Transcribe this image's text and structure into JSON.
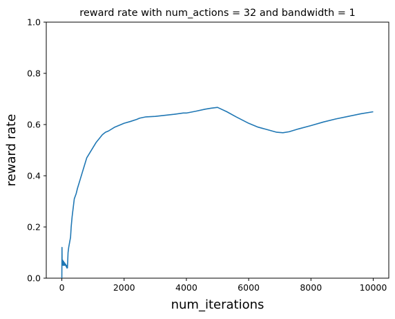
{
  "chart_data": {
    "type": "line",
    "title": "reward rate with num_actions = 32 and bandwidth = 1",
    "xlabel": "num_iterations",
    "ylabel": "reward rate",
    "xlim": [
      -500,
      10500
    ],
    "ylim": [
      0.0,
      1.0
    ],
    "xticks": [
      0,
      2000,
      4000,
      6000,
      8000,
      10000
    ],
    "xtick_labels": [
      "0",
      "2000",
      "4000",
      "6000",
      "8000",
      "10000"
    ],
    "yticks": [
      0.0,
      0.2,
      0.4,
      0.6,
      0.8,
      1.0
    ],
    "ytick_labels": [
      "0.0",
      "0.2",
      "0.4",
      "0.6",
      "0.8",
      "1.0"
    ],
    "grid": false,
    "legend": "none",
    "series": [
      {
        "color": "#1f77b4",
        "x": [
          0,
          5,
          10,
          15,
          20,
          30,
          40,
          50,
          60,
          70,
          80,
          90,
          100,
          120,
          140,
          150,
          160,
          180,
          200,
          220,
          250,
          280,
          300,
          330,
          360,
          400,
          430,
          460,
          500,
          550,
          600,
          650,
          700,
          750,
          800,
          850,
          900,
          1000,
          1100,
          1200,
          1300,
          1400,
          1500,
          1700,
          1900,
          2000,
          2200,
          2400,
          2500,
          2700,
          3000,
          3300,
          3600,
          3900,
          4000,
          4300,
          4600,
          4800,
          5000,
          5300,
          5600,
          6000,
          6300,
          6600,
          6900,
          7100,
          7300,
          7600,
          8000,
          8400,
          8800,
          9200,
          9600,
          10000
        ],
        "y": [
          0.0,
          0.12,
          0.05,
          0.07,
          0.06,
          0.07,
          0.05,
          0.06,
          0.065,
          0.05,
          0.055,
          0.06,
          0.05,
          0.055,
          0.045,
          0.05,
          0.04,
          0.04,
          0.1,
          0.12,
          0.14,
          0.16,
          0.2,
          0.24,
          0.27,
          0.31,
          0.32,
          0.33,
          0.35,
          0.37,
          0.39,
          0.41,
          0.43,
          0.45,
          0.47,
          0.48,
          0.49,
          0.51,
          0.53,
          0.545,
          0.56,
          0.57,
          0.575,
          0.59,
          0.6,
          0.605,
          0.612,
          0.62,
          0.625,
          0.63,
          0.632,
          0.636,
          0.64,
          0.645,
          0.645,
          0.652,
          0.66,
          0.664,
          0.667,
          0.65,
          0.63,
          0.605,
          0.59,
          0.58,
          0.57,
          0.568,
          0.572,
          0.583,
          0.596,
          0.61,
          0.622,
          0.632,
          0.642,
          0.65
        ]
      }
    ]
  }
}
